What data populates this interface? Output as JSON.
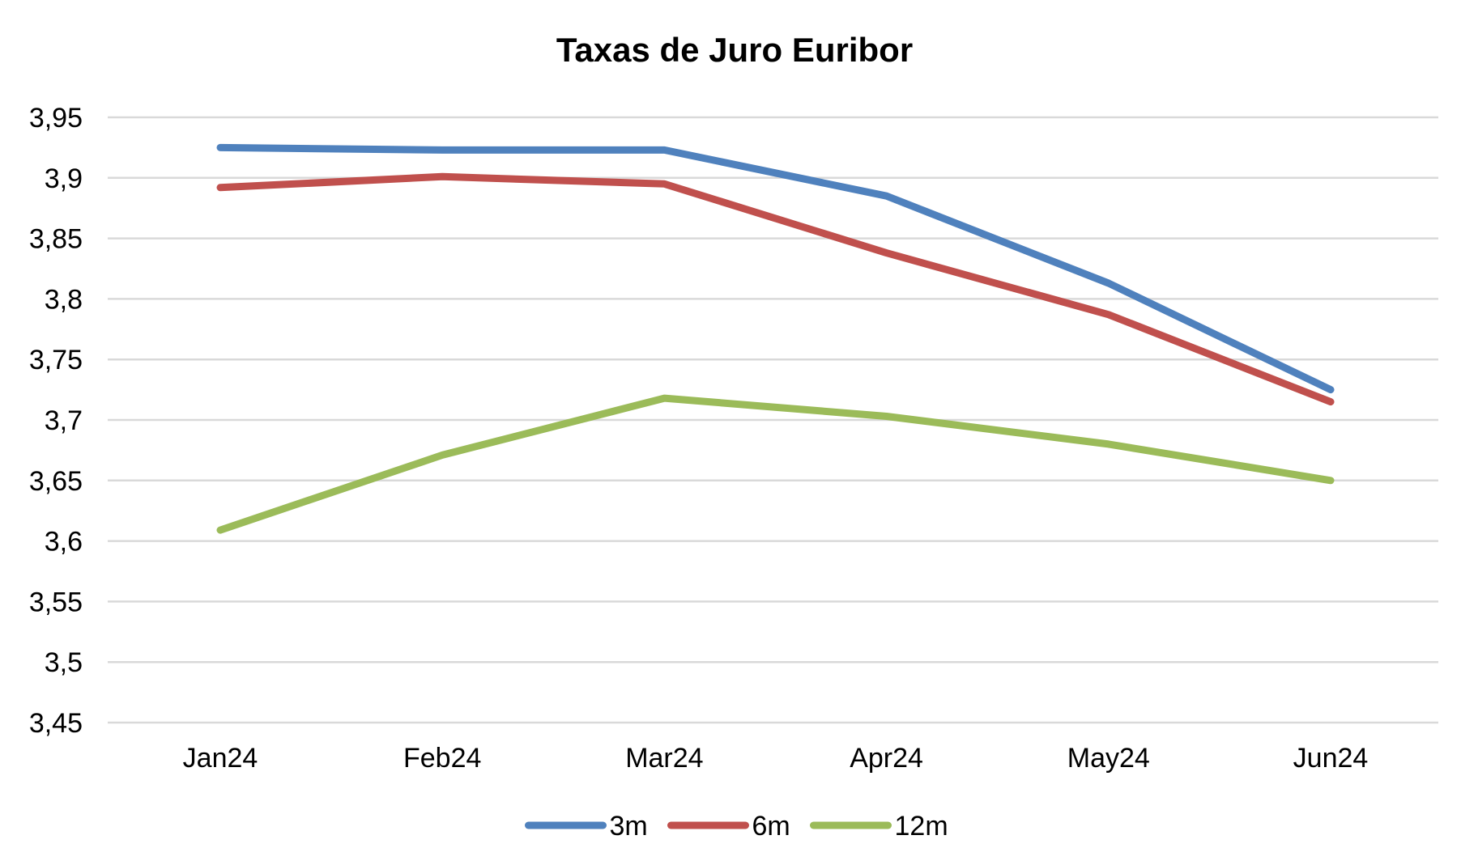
{
  "chart_data": {
    "type": "line",
    "title": "Taxas de Juro Euribor",
    "xlabel": "",
    "ylabel": "",
    "categories": [
      "Jan24",
      "Feb24",
      "Mar24",
      "Apr24",
      "May24",
      "Jun24"
    ],
    "series": [
      {
        "name": "3m",
        "color": "#4f81bd",
        "values": [
          3.925,
          3.923,
          3.923,
          3.885,
          3.813,
          3.725
        ]
      },
      {
        "name": "6m",
        "color": "#c0504d",
        "values": [
          3.892,
          3.901,
          3.895,
          3.838,
          3.787,
          3.715
        ]
      },
      {
        "name": "12m",
        "color": "#9bbb59",
        "values": [
          3.609,
          3.671,
          3.718,
          3.703,
          3.68,
          3.65
        ]
      }
    ],
    "ylim": [
      3.45,
      3.95
    ],
    "yticks": [
      "3,45",
      "3,5",
      "3,55",
      "3,6",
      "3,65",
      "3,7",
      "3,75",
      "3,8",
      "3,85",
      "3,9",
      "3,95"
    ],
    "grid": true,
    "legend_position": "bottom"
  }
}
